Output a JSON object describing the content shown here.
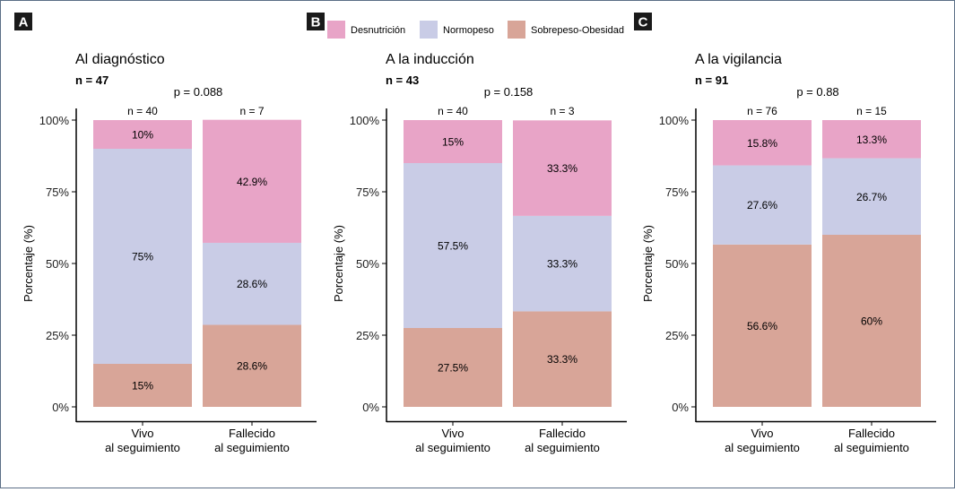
{
  "colors": {
    "Desnutrición": "#e8a4c7",
    "Normopeso": "#c9cce6",
    "Sobrepeso-Obesidad": "#d8a598"
  },
  "legend": {
    "letter": "B",
    "items": [
      "Desnutrición",
      "Normopeso",
      "Sobrepeso-Obesidad"
    ]
  },
  "chart_data": [
    {
      "type": "bar",
      "stacked": true,
      "panel": "A",
      "title": "Al diagnóstico",
      "n_total": "n = 47",
      "p_value": "p = 0.088",
      "ylabel": "Porcentaje (%)",
      "ylim": [
        0,
        100
      ],
      "yticks": [
        "0%",
        "25%",
        "50%",
        "75%",
        "100%"
      ],
      "categories": [
        [
          "Vivo",
          "al seguimiento"
        ],
        [
          "Fallecido",
          "al seguimiento"
        ]
      ],
      "n_labels": [
        "n = 40",
        "n = 7"
      ],
      "series": [
        {
          "name": "Sobrepeso-Obesidad",
          "values": [
            15,
            28.6
          ],
          "labels": [
            "15%",
            "28.6%"
          ]
        },
        {
          "name": "Normopeso",
          "values": [
            75,
            28.6
          ],
          "labels": [
            "75%",
            "28.6%"
          ]
        },
        {
          "name": "Desnutrición",
          "values": [
            10,
            42.9
          ],
          "labels": [
            "10%",
            "42.9%"
          ]
        }
      ]
    },
    {
      "type": "bar",
      "stacked": true,
      "panel": "B",
      "title": "A la inducción",
      "n_total": "n = 43",
      "p_value": "p = 0.158",
      "ylabel": "Porcentaje (%)",
      "ylim": [
        0,
        100
      ],
      "yticks": [
        "0%",
        "25%",
        "50%",
        "75%",
        "100%"
      ],
      "categories": [
        [
          "Vivo",
          "al seguimiento"
        ],
        [
          "Fallecido",
          "al seguimiento"
        ]
      ],
      "n_labels": [
        "n = 40",
        "n = 3"
      ],
      "series": [
        {
          "name": "Sobrepeso-Obesidad",
          "values": [
            27.5,
            33.3
          ],
          "labels": [
            "27.5%",
            "33.3%"
          ]
        },
        {
          "name": "Normopeso",
          "values": [
            57.5,
            33.3
          ],
          "labels": [
            "57.5%",
            "33.3%"
          ]
        },
        {
          "name": "Desnutrición",
          "values": [
            15,
            33.3
          ],
          "labels": [
            "15%",
            "33.3%"
          ]
        }
      ]
    },
    {
      "type": "bar",
      "stacked": true,
      "panel": "C",
      "title": "A la vigilancia",
      "n_total": "n = 91",
      "p_value": "p = 0.88",
      "ylabel": "Porcentaje (%)",
      "ylim": [
        0,
        100
      ],
      "yticks": [
        "0%",
        "25%",
        "50%",
        "75%",
        "100%"
      ],
      "categories": [
        [
          "Vivo",
          "al seguimiento"
        ],
        [
          "Fallecido",
          "al seguimiento"
        ]
      ],
      "n_labels": [
        "n = 76",
        "n = 15"
      ],
      "series": [
        {
          "name": "Sobrepeso-Obesidad",
          "values": [
            56.6,
            60
          ],
          "labels": [
            "56.6%",
            "60%"
          ]
        },
        {
          "name": "Normopeso",
          "values": [
            27.6,
            26.7
          ],
          "labels": [
            "27.6%",
            "26.7%"
          ]
        },
        {
          "name": "Desnutrición",
          "values": [
            15.8,
            13.3
          ],
          "labels": [
            "15.8%",
            "13.3%"
          ]
        }
      ]
    }
  ]
}
